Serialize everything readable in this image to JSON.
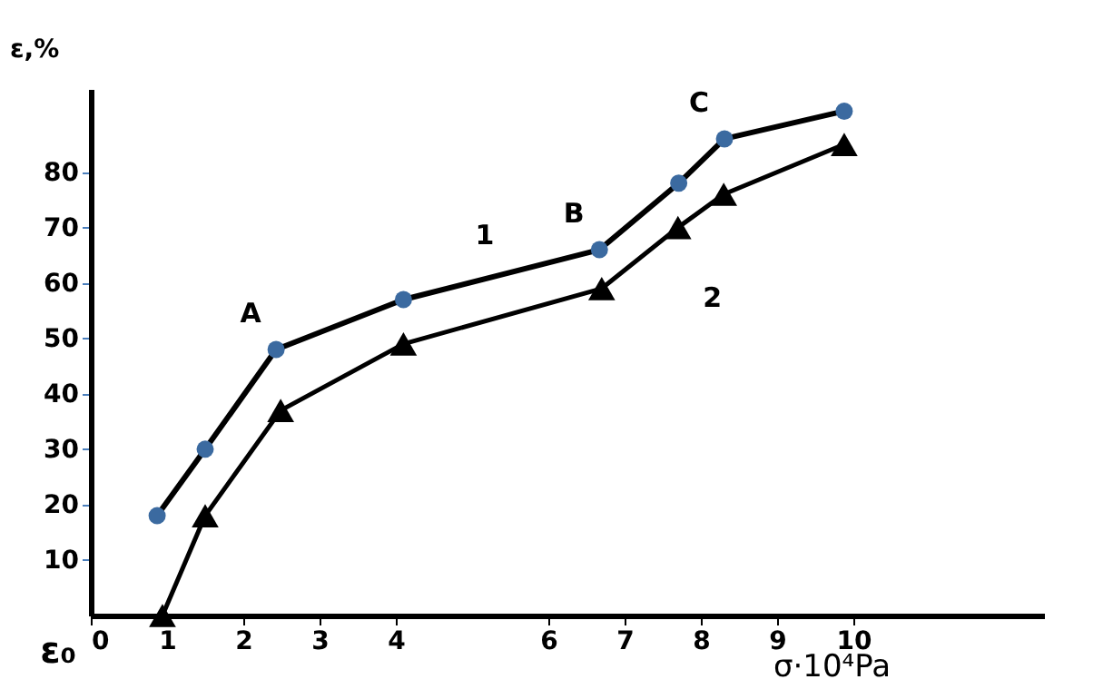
{
  "chart_data": {
    "type": "line",
    "xlabel": "σ·10⁴Pa",
    "ylabel": "ε,%",
    "xlim": [
      0,
      12.5
    ],
    "xticks": [
      0,
      1,
      2,
      3,
      4,
      6,
      7,
      8,
      9,
      10
    ],
    "ylim": [
      0,
      95
    ],
    "yticks": [
      10,
      20,
      30,
      40,
      50,
      60,
      70,
      80
    ],
    "grid": false,
    "line_style": "solid",
    "series": [
      {
        "x": [
          0.87,
          1.5,
          2.43,
          4.1,
          6.67,
          7.71,
          8.31,
          9.88
        ],
        "values": [
          18,
          30,
          48,
          57,
          66,
          78,
          86,
          91
        ],
        "color": "#3b6aa0",
        "marker": "circle"
      },
      {
        "x": [
          0.94,
          1.5,
          2.49,
          4.1,
          6.7,
          7.7,
          8.3,
          9.88
        ],
        "values": [
          0,
          18,
          37,
          49,
          59,
          70,
          76,
          85
        ],
        "color": "#000000",
        "marker": "triangle"
      }
    ],
    "annotations": [
      {
        "text": "A",
        "x": 2.43,
        "y": 48
      },
      {
        "text": "B",
        "x": 6.67,
        "y": 66
      },
      {
        "text": "C",
        "x": 8.31,
        "y": 86
      },
      {
        "text": "1",
        "x": 5.5,
        "y": 62
      },
      {
        "text": "2",
        "x": 7.2,
        "y": 64.5
      },
      "ε₀"
    ]
  }
}
